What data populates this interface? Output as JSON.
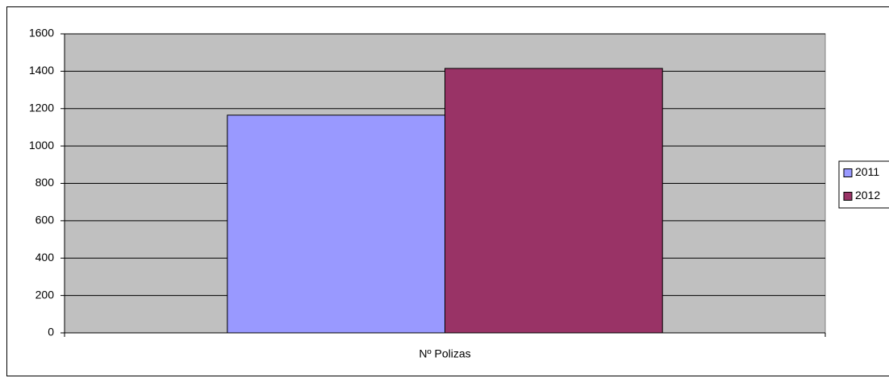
{
  "chart_data": {
    "type": "bar",
    "categories": [
      "Nº Polizas"
    ],
    "series": [
      {
        "name": "2011",
        "color": "#9999ff",
        "values": [
          1165
        ]
      },
      {
        "name": "2012",
        "color": "#993366",
        "values": [
          1415
        ]
      }
    ],
    "ylim": [
      0,
      1600
    ],
    "yticks": [
      0,
      200,
      400,
      600,
      800,
      1000,
      1200,
      1400,
      1600
    ],
    "grid": true,
    "legend": "right"
  }
}
